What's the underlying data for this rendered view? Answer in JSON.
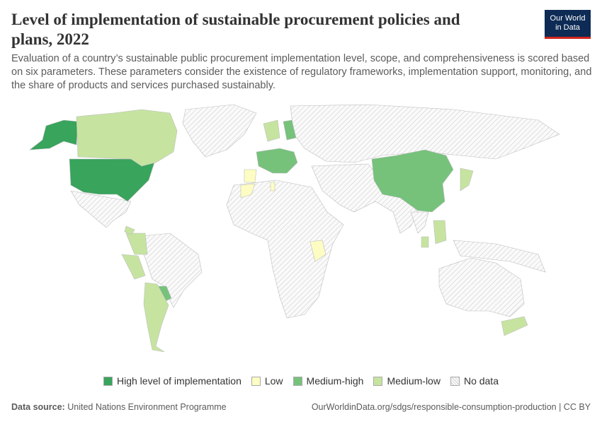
{
  "header": {
    "title": "Level of implementation of sustainable procurement policies and plans, 2022",
    "subtitle": "Evaluation of a country’s sustainable public procurement implementation level, scope, and comprehensiveness is scored based on six parameters. These parameters consider the existence of regulatory frameworks, implementation support, monitoring, and the share of products and services purchased sustainably.",
    "logo": [
      "Our World",
      "in Data"
    ]
  },
  "legend": [
    {
      "label": "High level of implementation",
      "color": "#38a45c"
    },
    {
      "label": "Low",
      "color": "#fdfdc3"
    },
    {
      "label": "Medium-high",
      "color": "#76c27b"
    },
    {
      "label": "Medium-low",
      "color": "#c6e4a0"
    },
    {
      "label": "No data"
    }
  ],
  "footer": {
    "source_label": "Data source:",
    "source": "United Nations Environment Programme",
    "url": "OurWorldinData.org/sdgs/responsible-consumption-production | CC BY"
  }
}
